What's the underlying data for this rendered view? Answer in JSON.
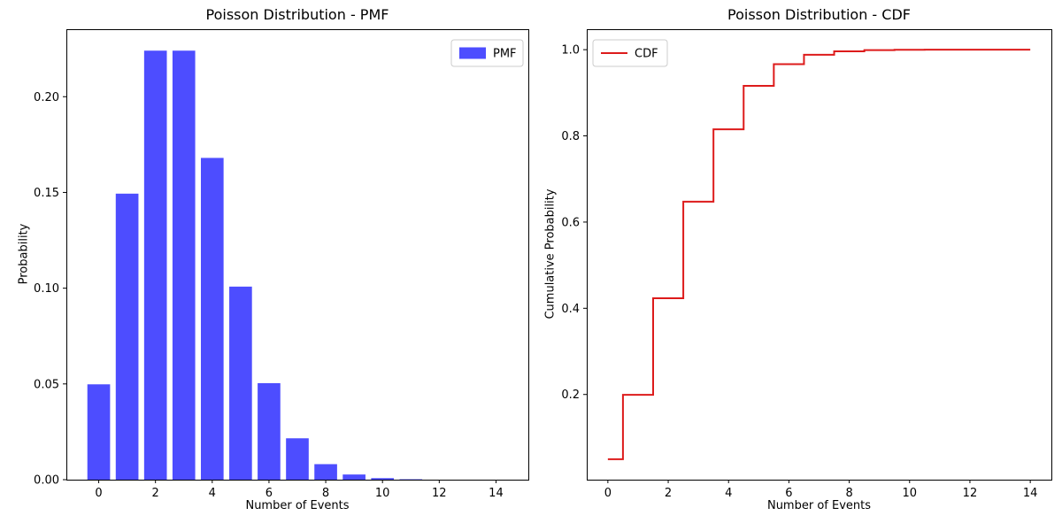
{
  "figure": {
    "background": "#ffffff",
    "text_color": "#000000",
    "spine_color": "#000000"
  },
  "chart_data": [
    {
      "id": "pmf",
      "type": "bar",
      "title": "Poisson Distribution - PMF",
      "xlabel": "Number of Events",
      "ylabel": "Probability",
      "legend": {
        "label": "PMF",
        "loc": "upper-right",
        "marker": "patch"
      },
      "color": "#4d4dff",
      "bar_width": 0.8,
      "grid": false,
      "categories": [
        0,
        1,
        2,
        3,
        4,
        5,
        6,
        7,
        8,
        9,
        10,
        11,
        12,
        13,
        14
      ],
      "values": [
        0.049787,
        0.149361,
        0.224042,
        0.224042,
        0.168031,
        0.100819,
        0.050409,
        0.021604,
        0.008102,
        0.002701,
        0.00081,
        0.000221,
        5.5e-05,
        1.3e-05,
        3e-06
      ],
      "xlim": [
        -1.14,
        15.14
      ],
      "ylim": [
        0,
        0.23524
      ],
      "xticks": {
        "values": [
          0,
          2,
          4,
          6,
          8,
          10,
          12,
          14
        ],
        "labels": [
          "0",
          "2",
          "4",
          "6",
          "8",
          "10",
          "12",
          "14"
        ]
      },
      "yticks": {
        "values": [
          0,
          0.05,
          0.1,
          0.15,
          0.2
        ],
        "labels": [
          "0.00",
          "0.05",
          "0.10",
          "0.15",
          "0.20"
        ]
      }
    },
    {
      "id": "cdf",
      "type": "step",
      "step_where": "mid",
      "title": "Poisson Distribution - CDF",
      "xlabel": "Number of Events",
      "ylabel": "Cumulative Probability",
      "legend": {
        "label": "CDF",
        "loc": "upper-left",
        "marker": "line"
      },
      "color": "#dd1b1b",
      "line_width": 2,
      "grid": false,
      "x": [
        0,
        1,
        2,
        3,
        4,
        5,
        6,
        7,
        8,
        9,
        10,
        11,
        12,
        13,
        14
      ],
      "values": [
        0.049787,
        0.199148,
        0.42319,
        0.647232,
        0.815263,
        0.916082,
        0.966491,
        0.988095,
        0.996197,
        0.998898,
        0.999708,
        0.999929,
        0.999984,
        0.999997,
        0.999999
      ],
      "xlim": [
        -0.7,
        14.7
      ],
      "ylim": [
        0.0023,
        1.0475
      ],
      "xticks": {
        "values": [
          0,
          2,
          4,
          6,
          8,
          10,
          12,
          14
        ],
        "labels": [
          "0",
          "2",
          "4",
          "6",
          "8",
          "10",
          "12",
          "14"
        ]
      },
      "yticks": {
        "values": [
          0.2,
          0.4,
          0.6,
          0.8,
          1.0
        ],
        "labels": [
          "0.2",
          "0.4",
          "0.6",
          "0.8",
          "1.0"
        ]
      }
    }
  ]
}
